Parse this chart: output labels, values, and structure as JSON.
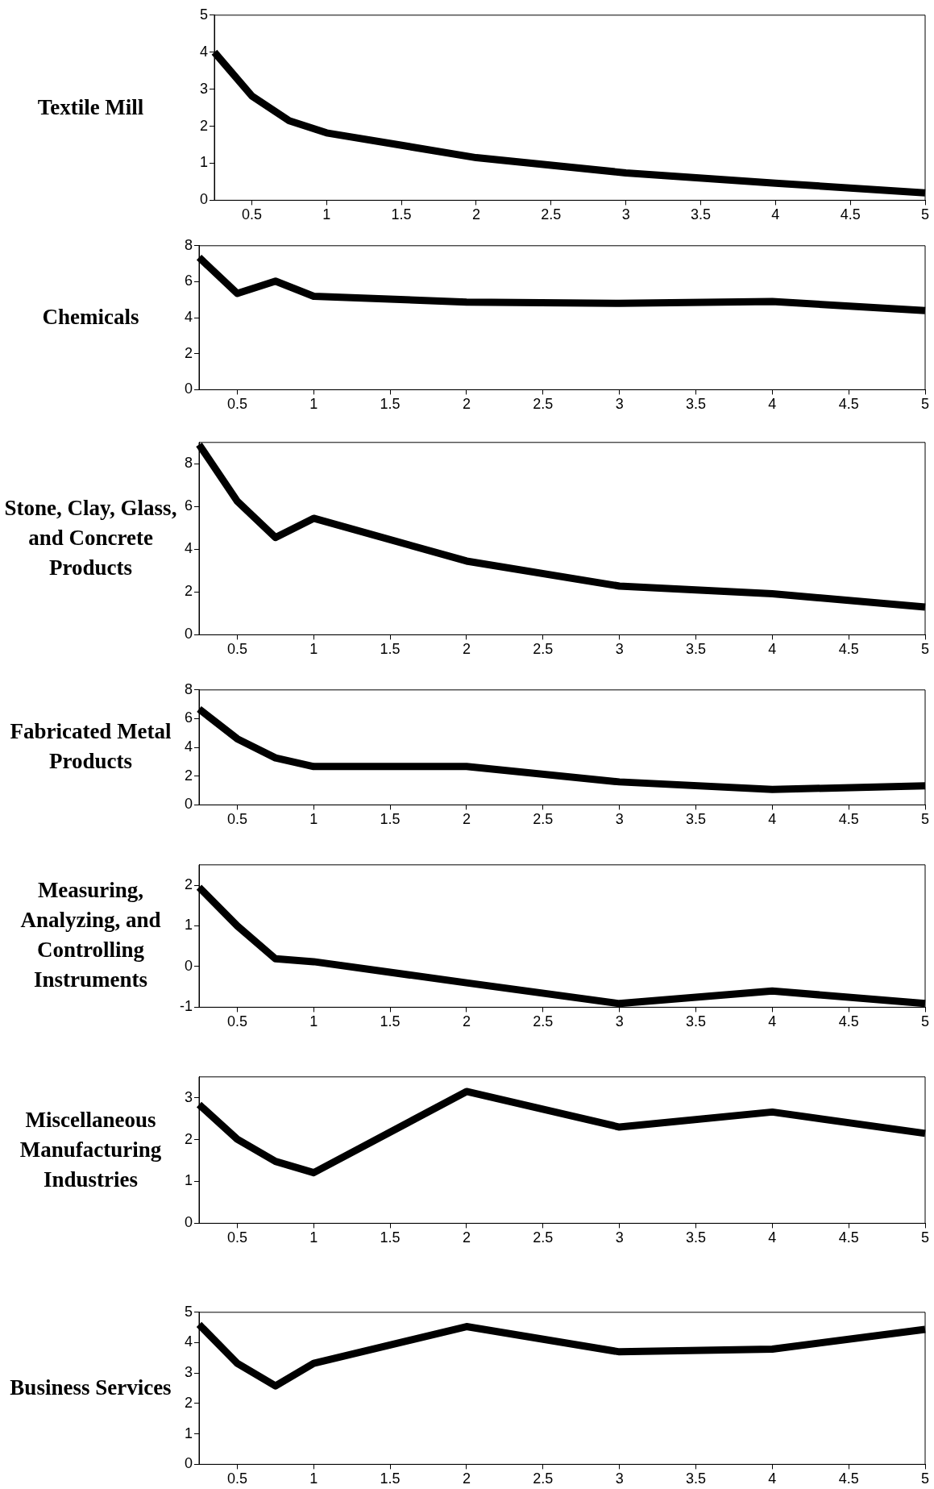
{
  "chart_data": [
    {
      "type": "line",
      "ylabel": "Textile Mill",
      "x": [
        0.25,
        0.5,
        0.75,
        1,
        2,
        3,
        4,
        5
      ],
      "values": [
        4.0,
        2.82,
        2.15,
        1.82,
        1.15,
        0.74,
        0.46,
        0.2
      ],
      "color": "#000000",
      "marker": "none",
      "xlim": [
        0.25,
        5
      ],
      "xticks": [
        0.5,
        1,
        1.5,
        2,
        2.5,
        3,
        3.5,
        4,
        4.5,
        5
      ],
      "ylim": [
        0,
        5
      ],
      "yticks": [
        0,
        1,
        2,
        3,
        4,
        5
      ]
    },
    {
      "type": "line",
      "ylabel": "Chemicals",
      "x": [
        0.25,
        0.5,
        0.75,
        1,
        2,
        3,
        4,
        5
      ],
      "values": [
        7.35,
        5.35,
        6.03,
        5.19,
        4.87,
        4.8,
        4.9,
        4.4
      ],
      "color": "#000000",
      "marker": "none",
      "xlim": [
        0.25,
        5
      ],
      "xticks": [
        0.5,
        1,
        1.5,
        2,
        2.5,
        3,
        3.5,
        4,
        4.5,
        5
      ],
      "ylim": [
        0,
        8
      ],
      "yticks": [
        0,
        2,
        4,
        6,
        8
      ]
    },
    {
      "type": "line",
      "ylabel": "Stone, Clay, Glass, and Concrete Products",
      "x": [
        0.25,
        0.5,
        0.75,
        1,
        2,
        3,
        4,
        5
      ],
      "values": [
        8.9,
        6.25,
        4.55,
        5.45,
        3.45,
        2.28,
        1.92,
        1.3
      ],
      "color": "#000000",
      "marker": "none",
      "xlim": [
        0.25,
        5
      ],
      "xticks": [
        0.5,
        1,
        1.5,
        2,
        2.5,
        3,
        3.5,
        4,
        4.5,
        5
      ],
      "ylim": [
        0,
        9
      ],
      "yticks": [
        0,
        2,
        4,
        6,
        8
      ]
    },
    {
      "type": "line",
      "ylabel": "Fabricated Metal Products",
      "x": [
        0.25,
        0.5,
        0.75,
        1,
        2,
        3,
        4,
        5
      ],
      "values": [
        6.67,
        4.6,
        3.27,
        2.67,
        2.67,
        1.6,
        1.07,
        1.33
      ],
      "color": "#000000",
      "marker": "none",
      "xlim": [
        0.25,
        5
      ],
      "xticks": [
        0.5,
        1,
        1.5,
        2,
        2.5,
        3,
        3.5,
        4,
        4.5,
        5
      ],
      "ylim": [
        0,
        8
      ],
      "yticks": [
        0,
        2,
        4,
        6,
        8
      ]
    },
    {
      "type": "line",
      "ylabel": "Measuring, Analyzing, and Controlling Instruments",
      "x": [
        0.25,
        0.5,
        0.75,
        1,
        2,
        3,
        4,
        5
      ],
      "values": [
        1.95,
        1.0,
        0.19,
        0.12,
        -0.4,
        -0.91,
        -0.6,
        -0.91
      ],
      "color": "#000000",
      "marker": "none",
      "xlim": [
        0.25,
        5
      ],
      "xticks": [
        0.5,
        1,
        1.5,
        2,
        2.5,
        3,
        3.5,
        4,
        4.5,
        5
      ],
      "ylim": [
        -1,
        2.5
      ],
      "yticks": [
        -1,
        0,
        1,
        2
      ]
    },
    {
      "type": "line",
      "ylabel": "Miscellaneous Manufacturing Industries",
      "x": [
        0.25,
        0.5,
        0.75,
        1,
        2,
        3,
        4,
        5
      ],
      "values": [
        2.84,
        2.01,
        1.48,
        1.21,
        3.15,
        2.3,
        2.66,
        2.15
      ],
      "color": "#000000",
      "marker": "none",
      "xlim": [
        0.25,
        5
      ],
      "xticks": [
        0.5,
        1,
        1.5,
        2,
        2.5,
        3,
        3.5,
        4,
        4.5,
        5
      ],
      "ylim": [
        0,
        3.5
      ],
      "yticks": [
        0,
        1,
        2,
        3
      ]
    },
    {
      "type": "line",
      "ylabel": "Business Services",
      "x": [
        0.25,
        0.5,
        0.75,
        1,
        2,
        3,
        4,
        5
      ],
      "values": [
        4.6,
        3.32,
        2.58,
        3.32,
        4.53,
        3.7,
        3.79,
        4.44
      ],
      "color": "#000000",
      "marker": "none",
      "xlim": [
        0.25,
        5
      ],
      "xticks": [
        0.5,
        1,
        1.5,
        2,
        2.5,
        3,
        3.5,
        4,
        4.5,
        5
      ],
      "ylim": [
        0,
        5
      ],
      "yticks": [
        0,
        1,
        2,
        3,
        4,
        5
      ]
    }
  ]
}
